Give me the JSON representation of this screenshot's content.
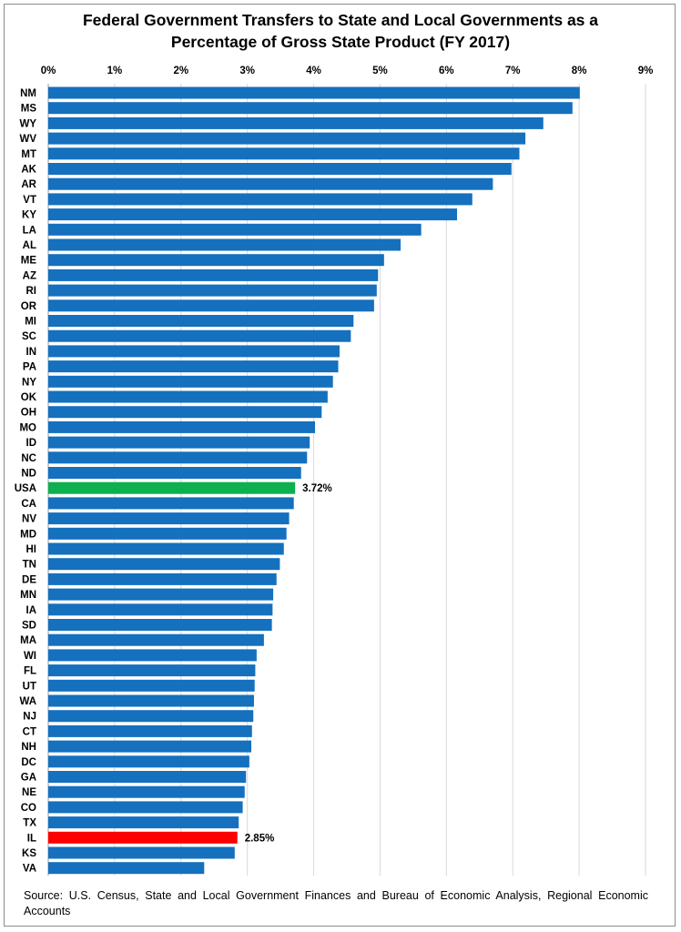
{
  "chart_data": {
    "type": "bar",
    "orientation": "horizontal",
    "title_lines": [
      "Federal Government Transfers to State and Local Governments as a",
      "Percentage of Gross State Product (FY 2017)"
    ],
    "xlim": [
      0,
      9
    ],
    "x_ticks": [
      "0%",
      "1%",
      "2%",
      "3%",
      "4%",
      "5%",
      "6%",
      "7%",
      "8%",
      "9%"
    ],
    "x_axis_position": "top",
    "grid": "vertical",
    "colors": {
      "default": "#1570BE",
      "usa": "#0DAF4F",
      "il": "#FF0000"
    },
    "categories": [
      "NM",
      "MS",
      "WY",
      "WV",
      "MT",
      "AK",
      "AR",
      "VT",
      "KY",
      "LA",
      "AL",
      "ME",
      "AZ",
      "RI",
      "OR",
      "MI",
      "SC",
      "IN",
      "PA",
      "NY",
      "OK",
      "OH",
      "MO",
      "ID",
      "NC",
      "ND",
      "USA",
      "CA",
      "NV",
      "MD",
      "HI",
      "TN",
      "DE",
      "MN",
      "IA",
      "SD",
      "MA",
      "WI",
      "FL",
      "UT",
      "WA",
      "NJ",
      "CT",
      "NH",
      "DC",
      "GA",
      "NE",
      "CO",
      "TX",
      "IL",
      "KS",
      "VA"
    ],
    "values": [
      8.01,
      7.9,
      7.46,
      7.19,
      7.1,
      6.98,
      6.7,
      6.39,
      6.16,
      5.62,
      5.31,
      5.06,
      4.97,
      4.95,
      4.91,
      4.6,
      4.56,
      4.39,
      4.37,
      4.29,
      4.21,
      4.12,
      4.02,
      3.94,
      3.9,
      3.81,
      3.72,
      3.7,
      3.63,
      3.59,
      3.55,
      3.49,
      3.44,
      3.39,
      3.38,
      3.37,
      3.25,
      3.14,
      3.12,
      3.11,
      3.1,
      3.09,
      3.07,
      3.06,
      3.03,
      2.98,
      2.96,
      2.93,
      2.87,
      2.85,
      2.81,
      2.35
    ],
    "highlight": {
      "USA": "usa",
      "IL": "il"
    },
    "data_labels": {
      "USA": "3.72%",
      "IL": "2.85%"
    }
  },
  "source_text": "Source: U.S. Census, State and Local Government Finances and Bureau of Economic Analysis, Regional Economic Accounts"
}
